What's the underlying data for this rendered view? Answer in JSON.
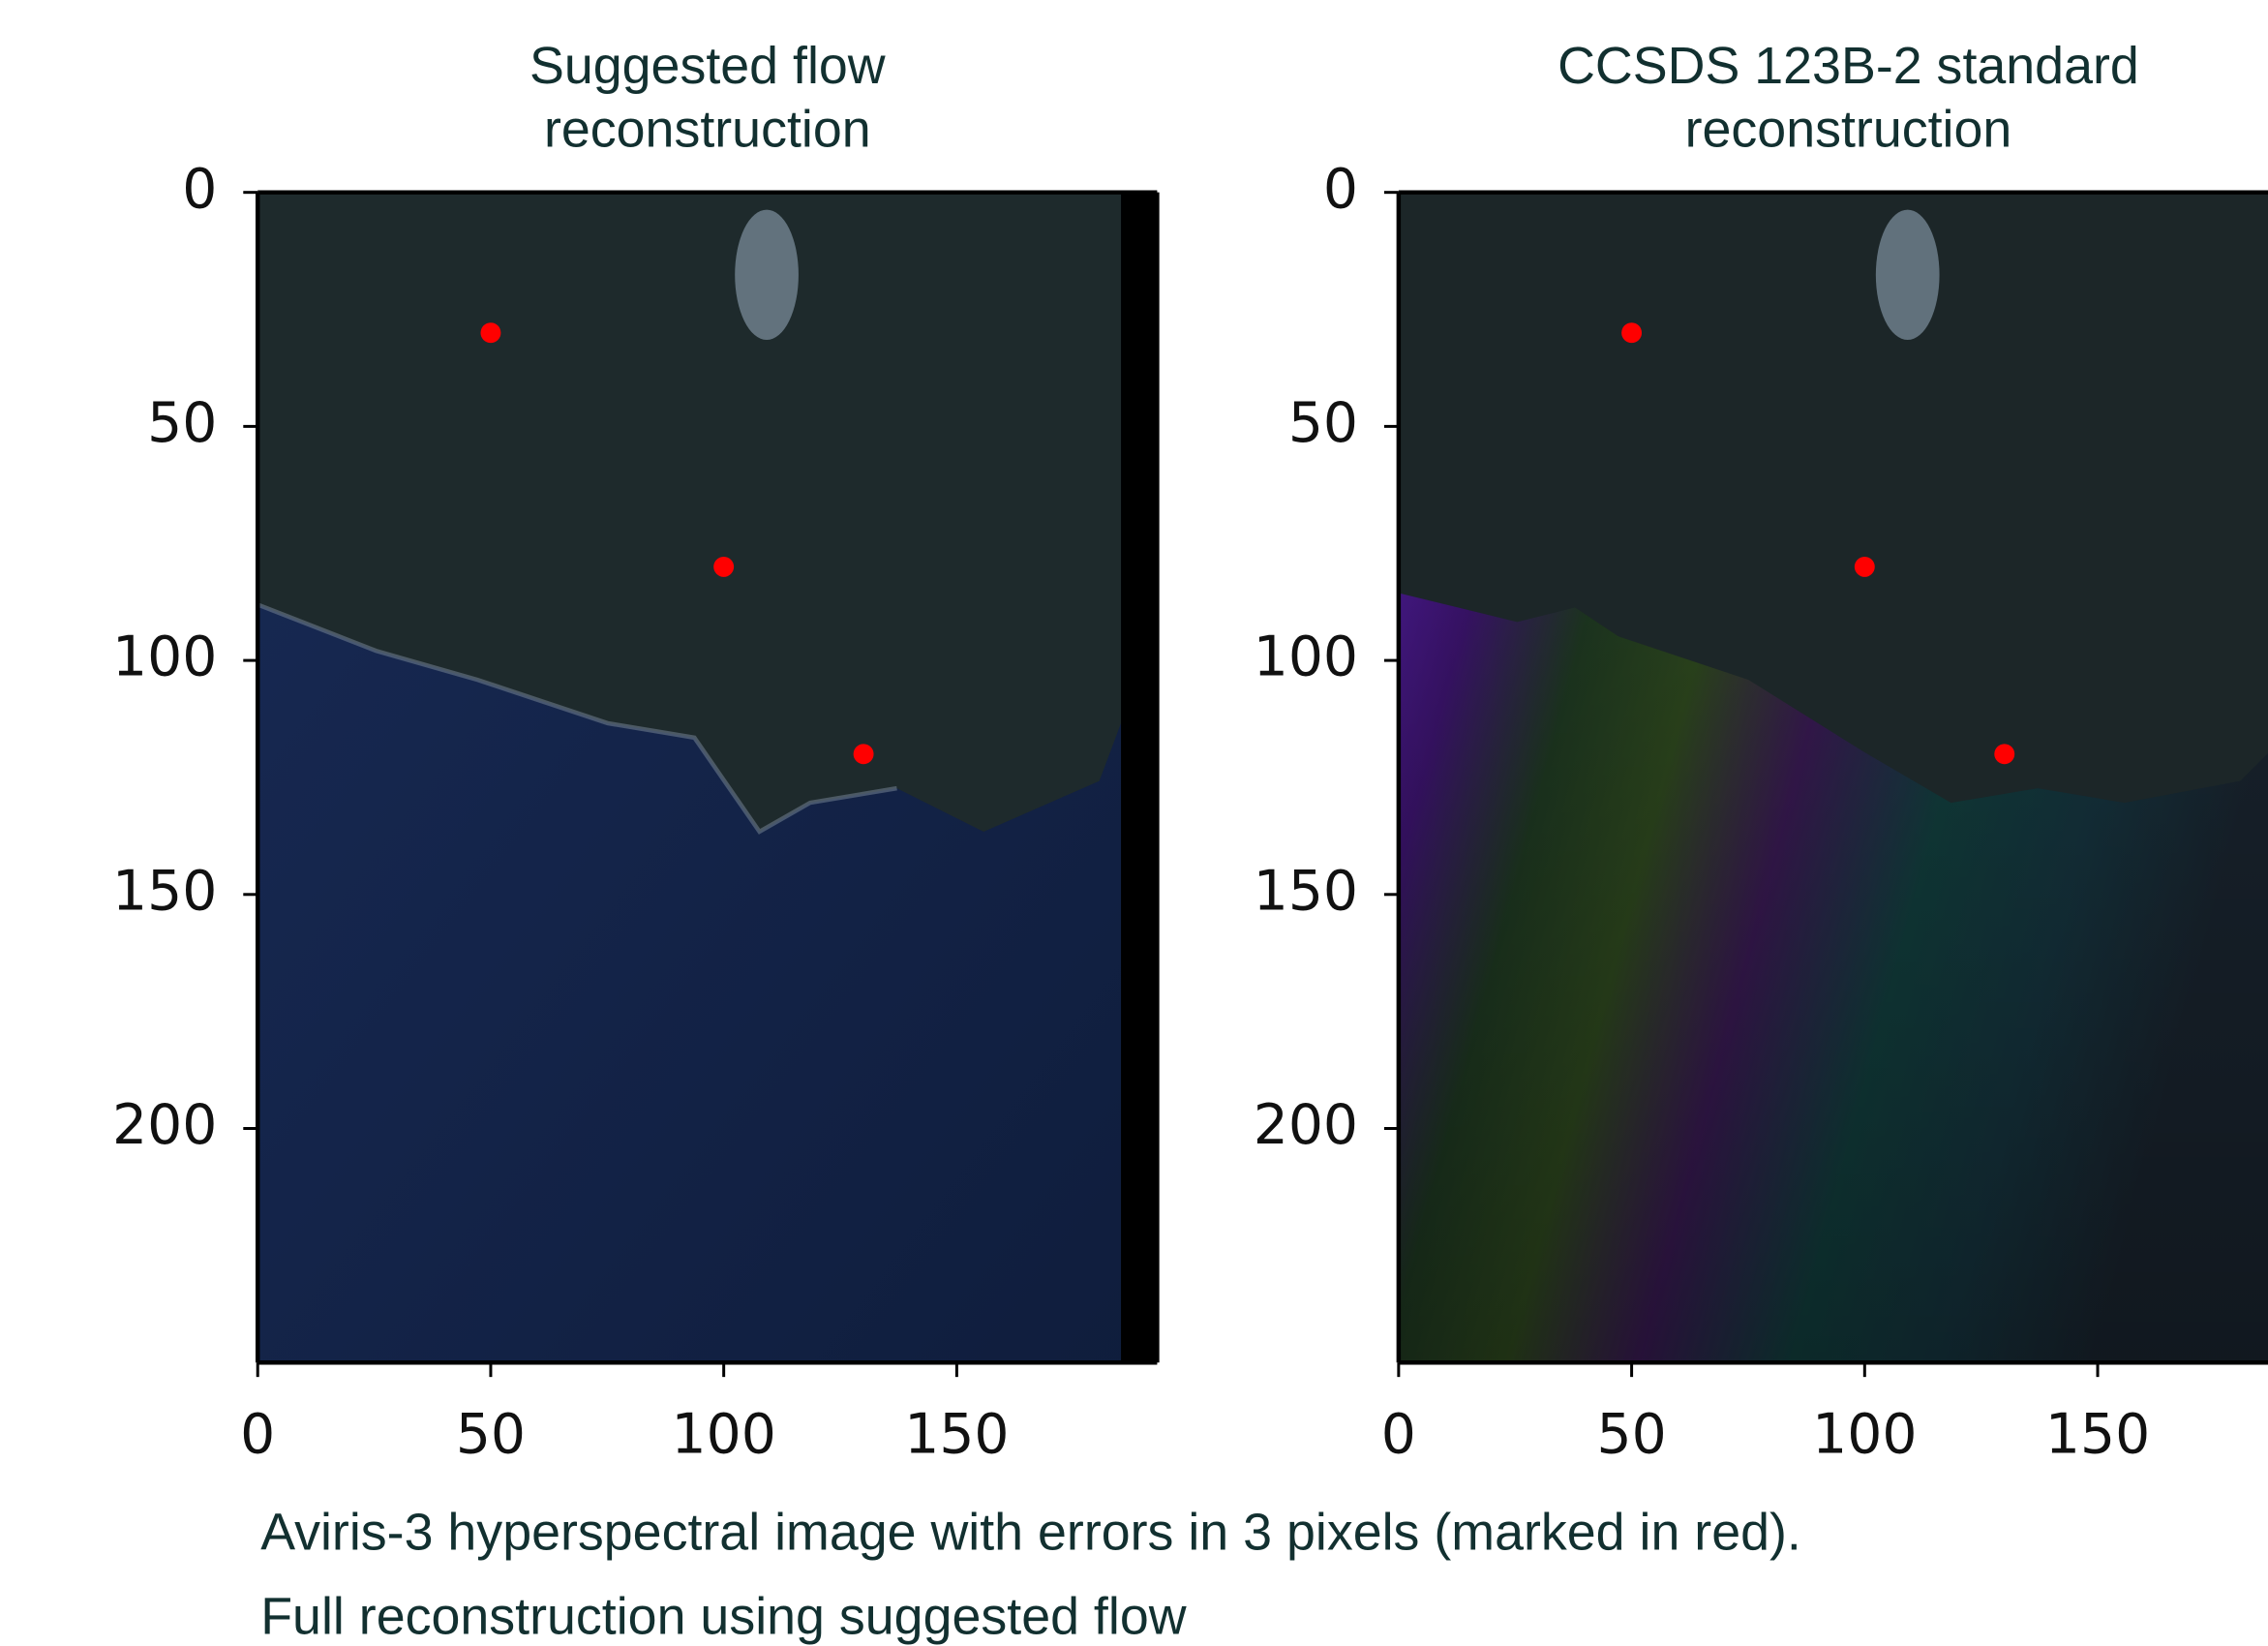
{
  "chart_data": [
    {
      "type": "image-scatter",
      "title": [
        "Suggested flow",
        "reconstruction"
      ],
      "x": [
        50,
        100,
        130
      ],
      "values": [
        30,
        80,
        120
      ],
      "color": "#ff0000",
      "xlim": [
        0,
        193
      ],
      "ylim": [
        250,
        0
      ],
      "xticks": [
        0,
        50,
        100,
        150
      ],
      "yticks": [
        0,
        50,
        100,
        150,
        200
      ]
    },
    {
      "type": "image-scatter",
      "title": [
        "CCSDS 123B-2 standard",
        "reconstruction"
      ],
      "x": [
        50,
        100,
        130
      ],
      "values": [
        30,
        80,
        120
      ],
      "color": "#ff0000",
      "xlim": [
        0,
        193
      ],
      "ylim": [
        250,
        0
      ],
      "xticks": [
        0,
        50,
        100,
        150
      ],
      "yticks": [
        0,
        50,
        100,
        150,
        200
      ]
    }
  ],
  "caption": [
    "Aviris-3 hyperspectral image with errors in 3 pixels (marked in red).",
    "Full reconstruction using suggested flow"
  ]
}
